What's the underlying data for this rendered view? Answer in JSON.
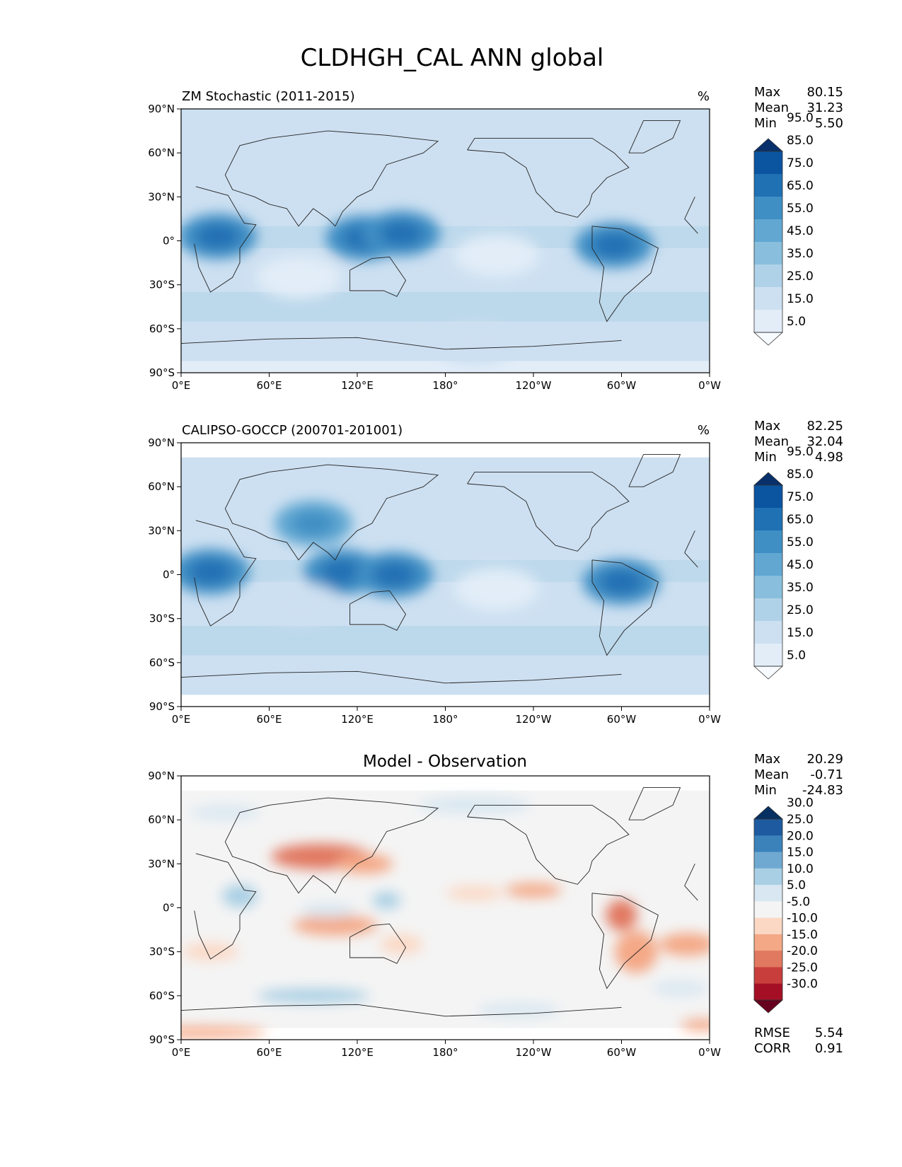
{
  "title": "CLDHGH_CAL ANN global",
  "x_ticks": [
    "0°E",
    "60°E",
    "120°E",
    "180°",
    "120°W",
    "60°W",
    "0°W"
  ],
  "y_ticks": [
    "90°N",
    "60°N",
    "30°N",
    "0°",
    "30°S",
    "60°S",
    "90°S"
  ],
  "chart_data": [
    {
      "type": "heatmap",
      "title": "ZM Stochastic (2011-2015)",
      "units": "%",
      "xlim": [
        0,
        360
      ],
      "ylim": [
        -90,
        90
      ],
      "stats": {
        "max_label": "Max",
        "max": "80.15",
        "mean_label": "Mean",
        "mean": "31.23",
        "min_label": "Min",
        "min": "5.50"
      },
      "colorbar": {
        "colors": [
          "#f7fbff",
          "#e2edf8",
          "#cde0f1",
          "#b0d2e8",
          "#89bfdd",
          "#61a7d2",
          "#3f8fc5",
          "#2070b4",
          "#0a54a0",
          "#08306b"
        ],
        "labels": [
          "5.0",
          "15.0",
          "25.0",
          "35.0",
          "45.0",
          "55.0",
          "65.0",
          "75.0",
          "85.0",
          "95.0"
        ]
      },
      "field_levels": {
        "base": 30,
        "blobs": [
          {
            "lon": 25,
            "lat": 3,
            "v": 62
          },
          {
            "lon": 125,
            "lat": 2,
            "v": 60
          },
          {
            "lon": 150,
            "lat": 5,
            "v": 58
          },
          {
            "lon": 295,
            "lat": -3,
            "v": 55
          },
          {
            "lon": 215,
            "lat": -10,
            "v": 12
          },
          {
            "lon": 80,
            "lat": -25,
            "v": 14
          },
          {
            "lon": 200,
            "lat": -70,
            "v": 22
          }
        ]
      }
    },
    {
      "type": "heatmap",
      "title": "CALIPSO-GOCCP (200701-201001)",
      "units": "%",
      "xlim": [
        0,
        360
      ],
      "ylim": [
        -90,
        90
      ],
      "stats": {
        "max_label": "Max",
        "max": "82.25",
        "mean_label": "Mean",
        "mean": "32.04",
        "min_label": "Min",
        "min": "4.98"
      },
      "colorbar": {
        "colors": [
          "#f7fbff",
          "#e2edf8",
          "#cde0f1",
          "#b0d2e8",
          "#89bfdd",
          "#61a7d2",
          "#3f8fc5",
          "#2070b4",
          "#0a54a0",
          "#08306b"
        ],
        "labels": [
          "5.0",
          "15.0",
          "25.0",
          "35.0",
          "45.0",
          "55.0",
          "65.0",
          "75.0",
          "85.0",
          "95.0"
        ]
      },
      "field_levels": {
        "base": 30,
        "blobs": [
          {
            "lon": 20,
            "lat": 2,
            "v": 64
          },
          {
            "lon": 110,
            "lat": 2,
            "v": 62
          },
          {
            "lon": 145,
            "lat": 0,
            "v": 58
          },
          {
            "lon": 300,
            "lat": -5,
            "v": 60
          },
          {
            "lon": 90,
            "lat": 35,
            "v": 52
          },
          {
            "lon": 215,
            "lat": -10,
            "v": 14
          },
          {
            "lon": 80,
            "lat": -20,
            "v": 18
          }
        ]
      }
    },
    {
      "type": "heatmap",
      "title": "Model - Observation",
      "xlim": [
        0,
        360
      ],
      "ylim": [
        -90,
        90
      ],
      "stats": {
        "max_label": "Max",
        "max": "20.29",
        "mean_label": "Mean",
        "mean": "-0.71",
        "min_label": "Min",
        "min": "-24.83"
      },
      "metrics": {
        "rmse_label": "RMSE",
        "rmse": "5.54",
        "corr_label": "CORR",
        "corr": "0.91"
      },
      "colorbar": {
        "colors": [
          "#67001f",
          "#a50f26",
          "#c73e3c",
          "#e17860",
          "#f4a886",
          "#fbd8c4",
          "#f4f4f4",
          "#d8e7f1",
          "#a9cfe4",
          "#6fa9d1",
          "#3b82bb",
          "#1e5a9f",
          "#053061"
        ],
        "labels": [
          "-30.0",
          "-25.0",
          "-20.0",
          "-15.0",
          "-10.0",
          "-5.0",
          "5.0",
          "10.0",
          "15.0",
          "20.0",
          "25.0",
          "30.0"
        ]
      }
    }
  ]
}
